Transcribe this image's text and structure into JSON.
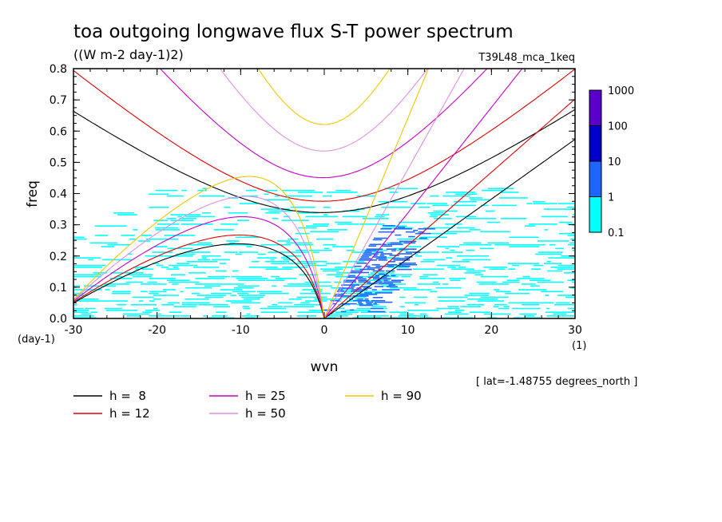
{
  "chart_data": {
    "type": "heatmap",
    "title": "toa outgoing longwave flux S-T power spectrum",
    "subtitle": "((W m-2 day-1)2)",
    "run_label": "T39L48_mca_1keq",
    "xlabel": "wvn",
    "ylabel": "freq",
    "x_units_label": "(1)",
    "y_units_label": "(day-1)",
    "annotation": "[ lat=-1.48755 degrees_north ]",
    "xlim": [
      -30,
      30
    ],
    "ylim": [
      0,
      0.8
    ],
    "xticks": [
      -30,
      -20,
      -10,
      0,
      10,
      20,
      30
    ],
    "yticks": [
      0.0,
      0.1,
      0.2,
      0.3,
      0.4,
      0.5,
      0.6,
      0.7,
      0.8
    ],
    "xtick_labels": [
      "-30",
      "-20",
      "-10",
      "0",
      "10",
      "20",
      "30"
    ],
    "ytick_labels": [
      "0.0",
      "0.1",
      "0.2",
      "0.3",
      "0.4",
      "0.5",
      "0.6",
      "0.7",
      "0.8"
    ],
    "colorbar": {
      "labels": [
        "1000",
        "100",
        "10",
        "1",
        "0.1"
      ],
      "levels": [
        0.1,
        1,
        10,
        100,
        1000
      ],
      "colors": [
        "#00ffff",
        "#1e64ff",
        "#0000c8",
        "#5a00c8"
      ]
    },
    "power_regions": [
      {
        "level": "0.1-1",
        "description": "broad background",
        "x_range": [
          -30,
          30
        ],
        "y_range": [
          0.0,
          0.55
        ]
      },
      {
        "level": "1-10",
        "description": "eastward Kelvin-like ridge",
        "x_range": [
          2,
          16
        ],
        "y_range": [
          0.02,
          0.3
        ]
      }
    ],
    "dispersion_curves": [
      {
        "name": "h =  8",
        "equivalent_depth": 8,
        "color": "#000000"
      },
      {
        "name": "h = 12",
        "equivalent_depth": 12,
        "color": "#e00000"
      },
      {
        "name": "h = 25",
        "equivalent_depth": 25,
        "color": "#c800c8"
      },
      {
        "name": "h = 50",
        "equivalent_depth": 50,
        "color": "#e090e0"
      },
      {
        "name": "h = 90",
        "equivalent_depth": 90,
        "color": "#f0c800"
      }
    ]
  }
}
